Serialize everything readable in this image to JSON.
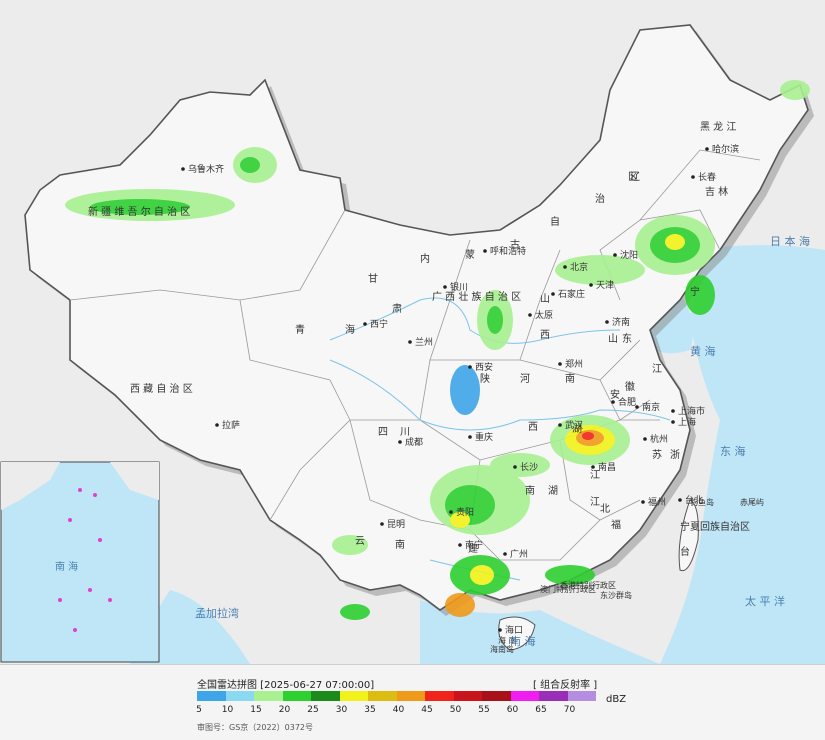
{
  "footer": {
    "title": "全国雷达拼图 [2025-06-27 07:00:00]",
    "product": "[ 组合反射率 ]",
    "unit": "dBZ",
    "license": "审图号：GS京（2022）0372号"
  },
  "legend": {
    "levels": [
      "5",
      "10",
      "15",
      "20",
      "25",
      "30",
      "35",
      "40",
      "45",
      "50",
      "55",
      "60",
      "65",
      "70"
    ],
    "colors": [
      "#3ea6e8",
      "#8ad8f2",
      "#a8f090",
      "#2ed030",
      "#1a8a1a",
      "#f2f21a",
      "#dcbc10",
      "#f09a1a",
      "#f0241a",
      "#c8141a",
      "#a8101a",
      "#f01cf0",
      "#9a2eb8",
      "#b48ce0"
    ]
  },
  "map_labels": {
    "regions": [
      {
        "text": "黑 龙 江"
      },
      {
        "text": "吉 林"
      },
      {
        "text": "辽"
      },
      {
        "text": "宁"
      },
      {
        "text": "内"
      },
      {
        "text": "蒙"
      },
      {
        "text": "古"
      },
      {
        "text": "自"
      },
      {
        "text": "治"
      },
      {
        "text": "区"
      },
      {
        "text": "新 疆 维 吾 尔 自 治 区"
      },
      {
        "text": "西 藏 自 治 区"
      },
      {
        "text": "青"
      },
      {
        "text": "海"
      },
      {
        "text": "甘"
      },
      {
        "text": "肃"
      },
      {
        "text": "四"
      },
      {
        "text": "川"
      },
      {
        "text": "云"
      },
      {
        "text": "南"
      },
      {
        "text": "山"
      },
      {
        "text": "西"
      },
      {
        "text": "陕"
      },
      {
        "text": "河"
      },
      {
        "text": "南"
      },
      {
        "text": "山"
      },
      {
        "text": "东"
      },
      {
        "text": "安"
      },
      {
        "text": "徽"
      },
      {
        "text": "江"
      },
      {
        "text": "苏"
      },
      {
        "text": "浙"
      },
      {
        "text": "江"
      },
      {
        "text": "江"
      },
      {
        "text": "西"
      },
      {
        "text": "湖"
      },
      {
        "text": "南"
      },
      {
        "text": "湖"
      },
      {
        "text": "北"
      },
      {
        "text": "福"
      },
      {
        "text": "建"
      },
      {
        "text": "广 西 壮 族 自 治 区"
      },
      {
        "text": "宁夏回族自治区"
      },
      {
        "text": "台"
      },
      {
        "text": "湾"
      }
    ],
    "cities": [
      {
        "text": "乌鲁木齐"
      },
      {
        "text": "哈尔滨"
      },
      {
        "text": "长春"
      },
      {
        "text": "沈阳"
      },
      {
        "text": "北京"
      },
      {
        "text": "天津"
      },
      {
        "text": "石家庄"
      },
      {
        "text": "太原"
      },
      {
        "text": "呼和浩特"
      },
      {
        "text": "银川"
      },
      {
        "text": "西宁"
      },
      {
        "text": "兰州"
      },
      {
        "text": "西安"
      },
      {
        "text": "郑州"
      },
      {
        "text": "济南"
      },
      {
        "text": "南京"
      },
      {
        "text": "合肥"
      },
      {
        "text": "上海市"
      },
      {
        "text": "杭州"
      },
      {
        "text": "武汉"
      },
      {
        "text": "长沙"
      },
      {
        "text": "南昌"
      },
      {
        "text": "福州"
      },
      {
        "text": "台北"
      },
      {
        "text": "成都"
      },
      {
        "text": "重庆"
      },
      {
        "text": "贵阳"
      },
      {
        "text": "昆明"
      },
      {
        "text": "南宁"
      },
      {
        "text": "广州"
      },
      {
        "text": "海口"
      },
      {
        "text": "拉萨"
      },
      {
        "text": "上海"
      }
    ],
    "special": [
      {
        "text": "香港特别行政区"
      },
      {
        "text": "澳门特别行政区"
      },
      {
        "text": "东沙群岛"
      },
      {
        "text": "海 南"
      },
      {
        "text": "海南岛"
      },
      {
        "text": "钓鱼岛"
      },
      {
        "text": "赤尾屿"
      }
    ],
    "water": [
      {
        "text": "日 本 海"
      },
      {
        "text": "黄 海"
      },
      {
        "text": "东 海"
      },
      {
        "text": "太 平 洋"
      },
      {
        "text": "南 海"
      },
      {
        "text": "孟加拉湾"
      }
    ],
    "inset": [
      {
        "text": "南 海"
      }
    ]
  }
}
